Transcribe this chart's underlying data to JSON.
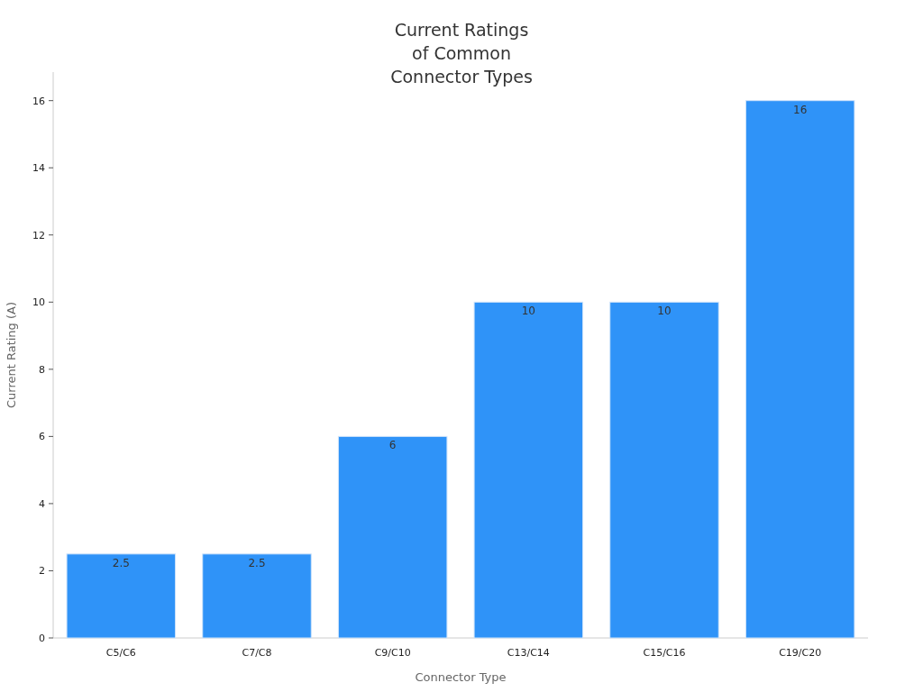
{
  "chart_data": {
    "type": "bar",
    "title": "Current Ratings\nof Common\nConnector Types",
    "xlabel": "Connector Type",
    "ylabel": "Current Rating (A)",
    "categories": [
      "C5/C6",
      "C7/C8",
      "C9/C10",
      "C13/C14",
      "C15/C16",
      "C19/C20"
    ],
    "values": [
      2.5,
      2.5,
      6,
      10,
      10,
      16
    ],
    "color": "#2f93f8",
    "ylim": [
      0,
      16.85
    ],
    "yticks": [
      0,
      2,
      4,
      6,
      8,
      10,
      12,
      14,
      16
    ],
    "data_labels": true
  }
}
